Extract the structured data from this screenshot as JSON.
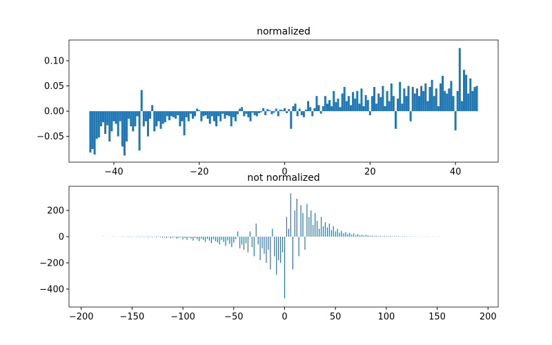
{
  "chart_data": [
    {
      "type": "bar",
      "title": "normalized",
      "color": "#1f77b4",
      "x": [
        -45.5,
        -45,
        -44.5,
        -44,
        -43.5,
        -43,
        -42.5,
        -42,
        -41.5,
        -41,
        -40.5,
        -40,
        -39.5,
        -39,
        -38.5,
        -38,
        -37.5,
        -37,
        -36.5,
        -36,
        -35.5,
        -35,
        -34.5,
        -34,
        -33.5,
        -33,
        -32.5,
        -32,
        -31.5,
        -31,
        -30.5,
        -30,
        -29.5,
        -29,
        -28.5,
        -28,
        -27.5,
        -27,
        -26.5,
        -26,
        -25.5,
        -25,
        -24.5,
        -24,
        -23.5,
        -23,
        -22.5,
        -22,
        -21.5,
        -21,
        -20.5,
        -20,
        -19.5,
        -19,
        -18.5,
        -18,
        -17.5,
        -17,
        -16.5,
        -16,
        -15.5,
        -15,
        -14.5,
        -14,
        -13.5,
        -13,
        -12.5,
        -12,
        -11.5,
        -11,
        -10.5,
        -10,
        -9.5,
        -9,
        -8.5,
        -8,
        -7.5,
        -7,
        -6.5,
        -6,
        -5.5,
        -5,
        -4.5,
        -4,
        -3.5,
        -3,
        -2.5,
        -2,
        -1.5,
        -1,
        -0.5,
        0,
        0.5,
        1,
        1.5,
        2,
        2.5,
        3,
        3.5,
        4,
        4.5,
        5,
        5.5,
        6,
        6.5,
        7,
        7.5,
        8,
        8.5,
        9,
        9.5,
        10,
        10.5,
        11,
        11.5,
        12,
        12.5,
        13,
        13.5,
        14,
        14.5,
        15,
        15.5,
        16,
        16.5,
        17,
        17.5,
        18,
        18.5,
        19,
        19.5,
        20,
        20.5,
        21,
        21.5,
        22,
        22.5,
        23,
        23.5,
        24,
        24.5,
        25,
        25.5,
        26,
        26.5,
        27,
        27.5,
        28,
        28.5,
        29,
        29.5,
        30,
        30.5,
        31,
        31.5,
        32,
        32.5,
        33,
        33.5,
        34,
        34.5,
        35,
        35.5,
        36,
        36.5,
        37,
        37.5,
        38,
        38.5,
        39,
        39.5,
        40,
        40.5,
        41,
        41.5,
        42,
        42.5,
        43,
        43.5,
        44,
        44.5,
        45
      ],
      "values": [
        -0.082,
        -0.075,
        -0.086,
        -0.055,
        -0.052,
        -0.03,
        -0.022,
        -0.045,
        -0.028,
        -0.06,
        -0.04,
        -0.02,
        -0.025,
        -0.05,
        -0.02,
        -0.07,
        -0.088,
        -0.06,
        -0.015,
        -0.03,
        -0.04,
        -0.03,
        -0.01,
        -0.078,
        0.042,
        -0.03,
        -0.02,
        -0.05,
        -0.015,
        0.012,
        -0.04,
        -0.03,
        -0.02,
        -0.035,
        -0.025,
        -0.022,
        -0.01,
        -0.018,
        -0.01,
        -0.012,
        -0.015,
        -0.008,
        -0.03,
        -0.02,
        -0.048,
        -0.012,
        -0.02,
        -0.005,
        -0.015,
        -0.01,
        0.005,
        0.002,
        -0.02,
        -0.01,
        -0.008,
        -0.015,
        -0.025,
        -0.01,
        -0.02,
        -0.03,
        -0.01,
        -0.02,
        -0.005,
        -0.015,
        -0.008,
        -0.01,
        -0.03,
        -0.012,
        -0.02,
        -0.006,
        0.005,
        0.008,
        -0.01,
        -0.005,
        -0.012,
        -0.02,
        -0.003,
        -0.008,
        -0.01,
        -0.004,
        -0.002,
        0.006,
        -0.008,
        0.004,
        0.002,
        -0.006,
        -0.003,
        0.005,
        -0.01,
        0.003,
        0.002,
        0.006,
        -0.004,
        0.004,
        -0.035,
        0.01,
        0.015,
        -0.01,
        0.005,
        -0.008,
        -0.012,
        0.003,
        0.02,
        0.008,
        -0.01,
        0.006,
        0.03,
        0.012,
        -0.005,
        0.01,
        0.03,
        0.015,
        0.022,
        0.01,
        0.04,
        0.018,
        0.025,
        0.008,
        0.035,
        0.048,
        0.02,
        0.03,
        0.012,
        0.038,
        0.025,
        0.04,
        0.015,
        0.045,
        0.01,
        0.032,
        0.022,
        -0.008,
        0.03,
        0.048,
        0.015,
        0.035,
        0.028,
        0.05,
        0.01,
        0.04,
        0.02,
        0.055,
        0.03,
        -0.035,
        0.025,
        0.058,
        0.015,
        0.045,
        0.03,
        0.05,
        -0.02,
        0.048,
        0.035,
        0.045,
        0.03,
        0.05,
        0.04,
        0.055,
        0.02,
        0.048,
        0.062,
        0.03,
        0.045,
        0.01,
        0.055,
        0.07,
        0.04,
        0.035,
        0.045,
        0.06,
        0.03,
        -0.038,
        0.04,
        0.125,
        0.02,
        0.082,
        0.072,
        0.035,
        0.065,
        0.04,
        0.048,
        0.05
      ],
      "xlim": [
        -50.5,
        50
      ],
      "ylim": [
        -0.101,
        0.141
      ],
      "xticks": [
        {
          "value": -40,
          "label": "−40"
        },
        {
          "value": -20,
          "label": "−20"
        },
        0,
        20,
        40
      ],
      "yticks": [
        {
          "value": -0.05,
          "label": "−0.05"
        },
        {
          "value": 0,
          "label": "0.00"
        },
        {
          "value": 0.05,
          "label": "0.05"
        },
        {
          "value": 0.1,
          "label": "0.10"
        }
      ]
    },
    {
      "type": "bar",
      "title": "not normalized",
      "color": "#1f77b4",
      "x": [
        -178,
        -176,
        -174,
        -172,
        -170,
        -168,
        -166,
        -164,
        -162,
        -160,
        -158,
        -156,
        -154,
        -152,
        -150,
        -148,
        -146,
        -144,
        -142,
        -140,
        -138,
        -136,
        -134,
        -132,
        -130,
        -128,
        -126,
        -124,
        -122,
        -120,
        -118,
        -116,
        -114,
        -112,
        -110,
        -108,
        -106,
        -104,
        -102,
        -100,
        -98,
        -96,
        -94,
        -92,
        -90,
        -88,
        -86,
        -84,
        -82,
        -80,
        -78,
        -76,
        -74,
        -72,
        -70,
        -68,
        -66,
        -64,
        -62,
        -60,
        -58,
        -56,
        -54,
        -52,
        -50,
        -48,
        -46,
        -44,
        -42,
        -40,
        -38,
        -36,
        -34,
        -32,
        -30,
        -28,
        -26,
        -24,
        -22,
        -20,
        -18,
        -16,
        -14,
        -12,
        -10,
        -8,
        -6,
        -4,
        -2,
        0,
        2,
        4,
        6,
        8,
        10,
        12,
        14,
        16,
        18,
        20,
        22,
        24,
        26,
        28,
        30,
        32,
        34,
        36,
        38,
        40,
        42,
        44,
        46,
        48,
        50,
        52,
        54,
        56,
        58,
        60,
        62,
        64,
        66,
        68,
        70,
        72,
        74,
        76,
        78,
        80,
        82,
        84,
        86,
        88,
        90,
        92,
        94,
        96,
        98,
        100,
        102,
        104,
        106,
        108,
        110,
        112,
        114,
        116,
        118,
        120,
        122,
        124,
        126,
        128,
        130,
        132,
        134,
        136,
        138,
        140,
        142,
        144,
        146,
        148,
        150,
        152,
        154
      ],
      "values": [
        2,
        0,
        1,
        0,
        -1,
        2,
        0,
        1,
        -1,
        2,
        -2,
        1,
        -3,
        2,
        -2,
        1,
        -3,
        2,
        -4,
        3,
        -3,
        2,
        -5,
        3,
        -4,
        2,
        -6,
        3,
        -5,
        -8,
        -6,
        -10,
        -4,
        -12,
        -8,
        -5,
        -15,
        -10,
        -6,
        -20,
        -12,
        -25,
        -8,
        -15,
        -30,
        -10,
        -20,
        -35,
        -15,
        -25,
        -40,
        -18,
        -30,
        -50,
        -20,
        -35,
        -45,
        -60,
        -25,
        -40,
        -70,
        -30,
        -55,
        -80,
        -45,
        -20,
        40,
        -90,
        -60,
        -100,
        -50,
        -120,
        40,
        -80,
        -150,
        100,
        -60,
        -180,
        -90,
        -130,
        -200,
        -100,
        -250,
        60,
        -150,
        -290,
        -180,
        -200,
        -120,
        -470,
        150,
        60,
        330,
        -250,
        200,
        290,
        -150,
        240,
        180,
        -100,
        250,
        150,
        200,
        90,
        180,
        120,
        60,
        150,
        80,
        110,
        70,
        100,
        50,
        80,
        40,
        60,
        30,
        45,
        25,
        35,
        20,
        30,
        15,
        25,
        12,
        20,
        10,
        15,
        8,
        12,
        10,
        6,
        8,
        5,
        7,
        4,
        6,
        3,
        5,
        4,
        3,
        5,
        2,
        4,
        2,
        3,
        1,
        3,
        2,
        2,
        1,
        2,
        1,
        2,
        1,
        1,
        0,
        1,
        1,
        2,
        1,
        0,
        1,
        1,
        0,
        1,
        0
      ],
      "xlim": [
        -212,
        210
      ],
      "ylim": [
        -537,
        384
      ],
      "xticks": [
        {
          "value": -200,
          "label": "−200"
        },
        {
          "value": -150,
          "label": "−150"
        },
        {
          "value": -100,
          "label": "−100"
        },
        {
          "value": -50,
          "label": "−50"
        },
        0,
        50,
        100,
        150,
        200
      ],
      "yticks": [
        {
          "value": -400,
          "label": "−400"
        },
        {
          "value": -200,
          "label": "−200"
        },
        0,
        200
      ]
    }
  ]
}
